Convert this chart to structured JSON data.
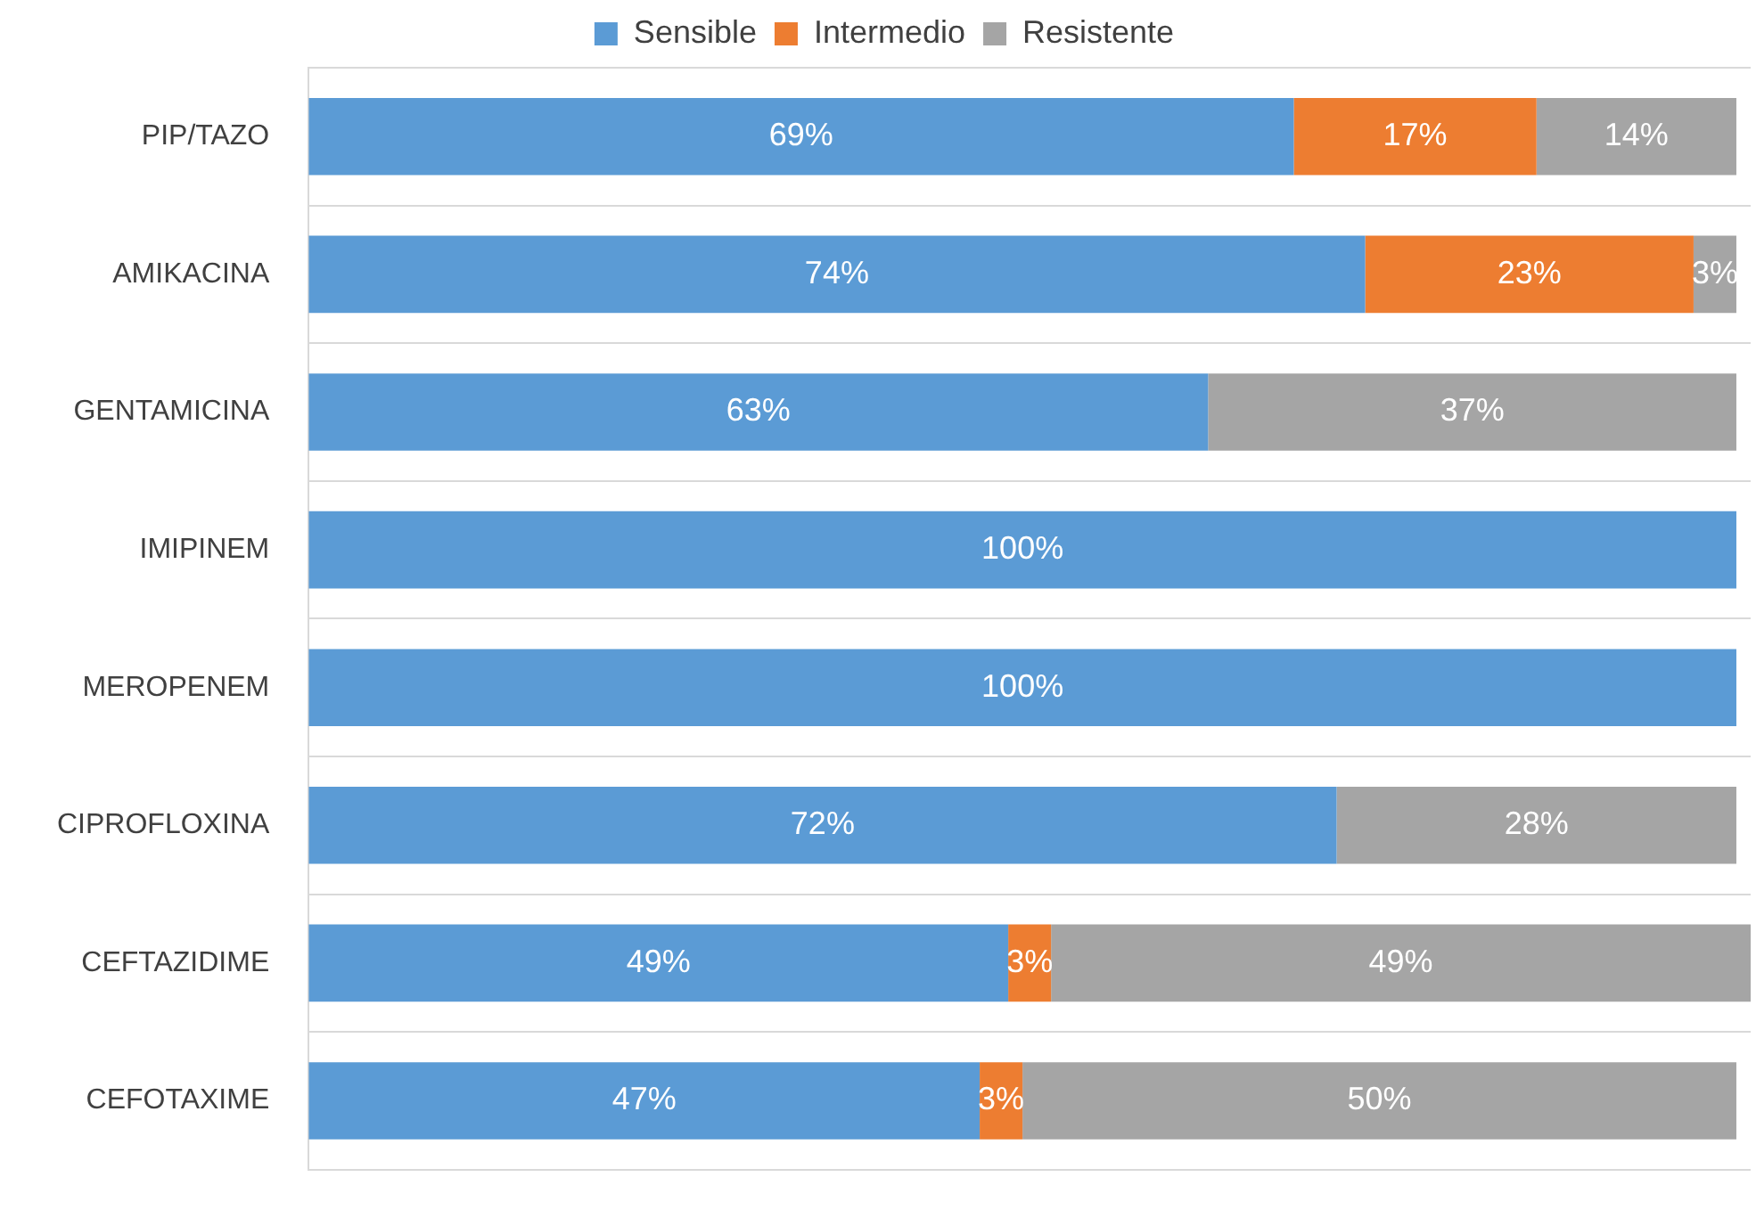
{
  "chart_data": {
    "type": "bar",
    "orientation": "horizontal",
    "stacked": true,
    "legend": "top",
    "grid": "y",
    "categories": [
      "PIP/TAZO",
      "AMIKACINA",
      "GENTAMICINA",
      "IMIPINEM",
      "MEROPENEM",
      "CIPROFLOXINA",
      "CEFTAZIDIME",
      "CEFOTAXIME"
    ],
    "series": [
      {
        "name": "Sensible",
        "color": "#5b9bd5",
        "values": [
          69,
          74,
          63,
          100,
          100,
          72,
          49,
          47
        ],
        "value_labels": [
          "69%",
          "74%",
          "63%",
          "100%",
          "100%",
          "72%",
          "49%",
          "47%"
        ]
      },
      {
        "name": "Intermedio",
        "color": "#ed7d31",
        "values": [
          17,
          23,
          null,
          null,
          null,
          null,
          3,
          3
        ],
        "value_labels": [
          "17%",
          "23%",
          null,
          null,
          null,
          null,
          "3%",
          "3%"
        ]
      },
      {
        "name": "Resistente",
        "color": "#a5a5a5",
        "values": [
          14,
          3,
          37,
          null,
          null,
          28,
          49,
          50
        ],
        "value_labels": [
          "14%",
          "3%",
          "37%",
          null,
          null,
          "28%",
          "49%",
          "50%"
        ]
      }
    ]
  }
}
